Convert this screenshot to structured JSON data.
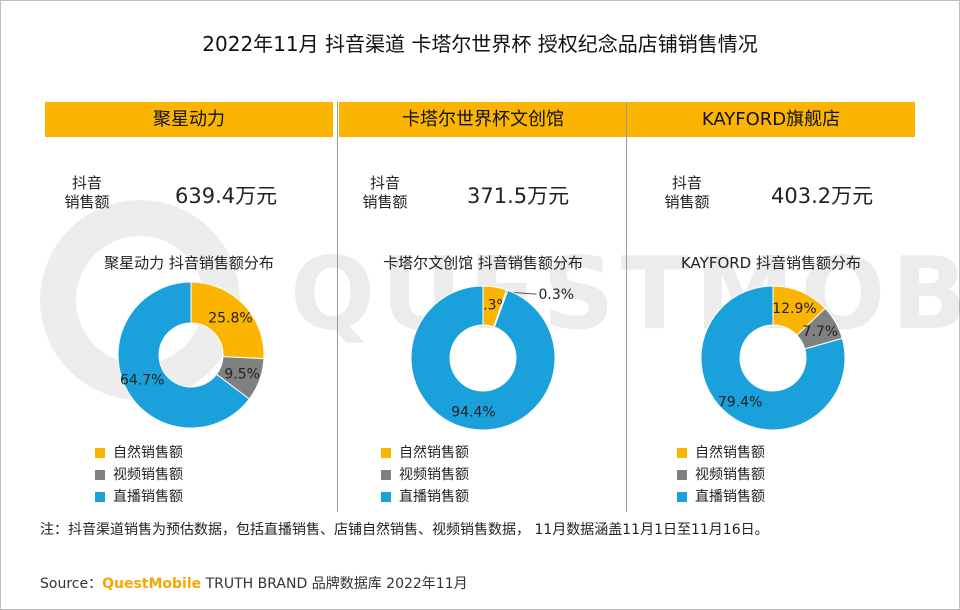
{
  "title": "2022年11月 抖音渠道 卡塔尔世界杯 授权纪念品店铺销售情况",
  "watermark": "QUESTMOBILE",
  "metric_label_line1": "抖音",
  "metric_label_line2": "销售额",
  "colors": {
    "natural": "#fbb400",
    "video": "#808080",
    "live": "#1aa0db",
    "header": "#fbb400"
  },
  "legend": [
    "自然销售额",
    "视频销售额",
    "直播销售额"
  ],
  "chart_data": [
    {
      "type": "pie",
      "store": "聚星动力",
      "sales": "639.4万元",
      "title": "聚星动力 抖音销售额分布",
      "categories": [
        "自然销售额",
        "视频销售额",
        "直播销售额"
      ],
      "values": [
        25.8,
        9.5,
        64.7
      ],
      "labels": [
        "25.8%",
        "9.5%",
        "64.7%"
      ]
    },
    {
      "type": "pie",
      "store": "卡塔尔世界杯文创馆",
      "sales": "371.5万元",
      "title": "卡塔尔文创馆 抖音销售额分布",
      "categories": [
        "自然销售额",
        "视频销售额",
        "直播销售额"
      ],
      "values": [
        5.3,
        0.3,
        94.4
      ],
      "labels": [
        "5.3%",
        "0.3%",
        "94.4%"
      ]
    },
    {
      "type": "pie",
      "store": "KAYFORD旗舰店",
      "sales": "403.2万元",
      "title": "KAYFORD 抖音销售额分布",
      "categories": [
        "自然销售额",
        "视频销售额",
        "直播销售额"
      ],
      "values": [
        12.9,
        7.7,
        79.4
      ],
      "labels": [
        "12.9%",
        "7.7%",
        "79.4%"
      ]
    }
  ],
  "footnote": "注：抖音渠道销售为预估数据，包括直播销售、店铺自然销售、视频销售数据， 11月数据涵盖11月1日至11月16日。",
  "source_prefix": "Source：",
  "source_brand": "QuestMobile",
  "source_suffix": " TRUTH BRAND 品牌数据库 2022年11月"
}
